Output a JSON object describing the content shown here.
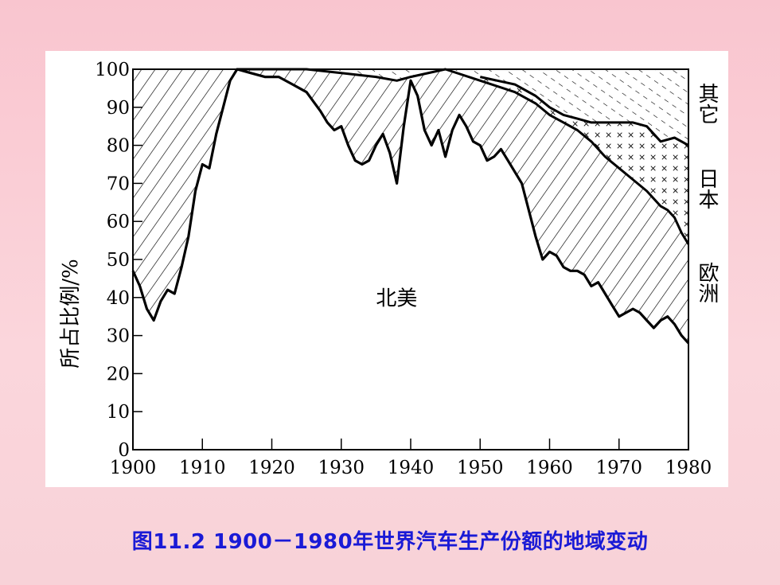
{
  "caption": "图11.2  1900－1980年世界汽车生产份额的地域变动",
  "chart_data": {
    "type": "area",
    "title": "",
    "xlabel": "",
    "ylabel": "所占比例/%",
    "xlim": [
      1900,
      1980
    ],
    "ylim": [
      0,
      100
    ],
    "x_ticks": [
      "1900",
      "1910",
      "1920",
      "1930",
      "1940",
      "1950",
      "1960",
      "1970",
      "1980"
    ],
    "y_ticks": [
      "0",
      "10",
      "20",
      "30",
      "40",
      "50",
      "60",
      "70",
      "80",
      "90",
      "100"
    ],
    "stacked_order": [
      "北美",
      "欧洲",
      "日本",
      "其它"
    ],
    "region_labels": {
      "north_america": "北美",
      "europe": "欧洲",
      "japan": "日本",
      "other": "其它"
    },
    "boundaries": {
      "north_america_top": [
        [
          1900,
          47
        ],
        [
          1901,
          43
        ],
        [
          1902,
          37
        ],
        [
          1903,
          34
        ],
        [
          1904,
          39
        ],
        [
          1905,
          42
        ],
        [
          1906,
          41
        ],
        [
          1907,
          48
        ],
        [
          1908,
          56
        ],
        [
          1909,
          68
        ],
        [
          1910,
          75
        ],
        [
          1911,
          74
        ],
        [
          1912,
          83
        ],
        [
          1913,
          90
        ],
        [
          1914,
          97
        ],
        [
          1915,
          100
        ],
        [
          1917,
          99
        ],
        [
          1919,
          98
        ],
        [
          1921,
          98
        ],
        [
          1923,
          96
        ],
        [
          1925,
          94
        ],
        [
          1927,
          89
        ],
        [
          1928,
          86
        ],
        [
          1929,
          84
        ],
        [
          1930,
          85
        ],
        [
          1931,
          80
        ],
        [
          1932,
          76
        ],
        [
          1933,
          75
        ],
        [
          1934,
          76
        ],
        [
          1935,
          80
        ],
        [
          1936,
          83
        ],
        [
          1937,
          78
        ],
        [
          1938,
          70
        ],
        [
          1939,
          85
        ],
        [
          1940,
          97
        ],
        [
          1941,
          93
        ],
        [
          1942,
          84
        ],
        [
          1943,
          80
        ],
        [
          1944,
          84
        ],
        [
          1945,
          77
        ],
        [
          1946,
          84
        ],
        [
          1947,
          88
        ],
        [
          1948,
          85
        ],
        [
          1949,
          81
        ],
        [
          1950,
          80
        ],
        [
          1951,
          76
        ],
        [
          1952,
          77
        ],
        [
          1953,
          79
        ],
        [
          1954,
          76
        ],
        [
          1955,
          73
        ],
        [
          1956,
          70
        ],
        [
          1957,
          63
        ],
        [
          1958,
          56
        ],
        [
          1959,
          50
        ],
        [
          1960,
          52
        ],
        [
          1961,
          51
        ],
        [
          1962,
          48
        ],
        [
          1963,
          47
        ],
        [
          1964,
          47
        ],
        [
          1965,
          46
        ],
        [
          1966,
          43
        ],
        [
          1967,
          44
        ],
        [
          1968,
          41
        ],
        [
          1969,
          38
        ],
        [
          1970,
          35
        ],
        [
          1971,
          36
        ],
        [
          1972,
          37
        ],
        [
          1973,
          36
        ],
        [
          1974,
          34
        ],
        [
          1975,
          32
        ],
        [
          1976,
          34
        ],
        [
          1977,
          35
        ],
        [
          1978,
          33
        ],
        [
          1979,
          30
        ],
        [
          1980,
          28
        ]
      ],
      "europe_top": [
        [
          1915,
          100
        ],
        [
          1920,
          100
        ],
        [
          1925,
          100
        ],
        [
          1930,
          99
        ],
        [
          1935,
          98
        ],
        [
          1938,
          97
        ],
        [
          1940,
          98
        ],
        [
          1945,
          100
        ],
        [
          1950,
          97
        ],
        [
          1955,
          94
        ],
        [
          1958,
          91
        ],
        [
          1960,
          88
        ],
        [
          1962,
          86
        ],
        [
          1964,
          84
        ],
        [
          1966,
          81
        ],
        [
          1968,
          77
        ],
        [
          1970,
          74
        ],
        [
          1972,
          71
        ],
        [
          1974,
          68
        ],
        [
          1976,
          64
        ],
        [
          1977,
          63
        ],
        [
          1978,
          61
        ],
        [
          1979,
          57
        ],
        [
          1980,
          54
        ]
      ],
      "japan_top": [
        [
          1950,
          98
        ],
        [
          1955,
          96
        ],
        [
          1958,
          93
        ],
        [
          1960,
          90
        ],
        [
          1962,
          88
        ],
        [
          1964,
          87
        ],
        [
          1966,
          86
        ],
        [
          1968,
          86
        ],
        [
          1970,
          86
        ],
        [
          1972,
          86
        ],
        [
          1974,
          85
        ],
        [
          1976,
          81
        ],
        [
          1978,
          82
        ],
        [
          1980,
          80
        ]
      ]
    }
  }
}
